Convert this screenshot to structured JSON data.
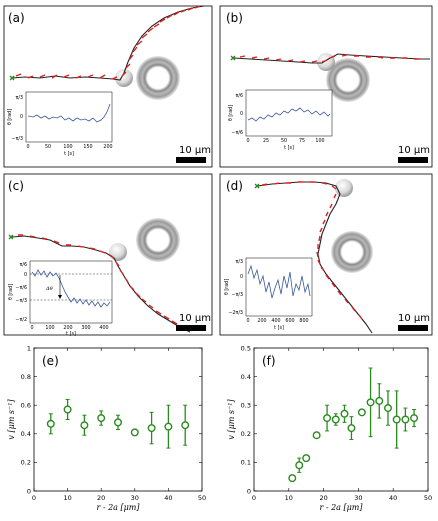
{
  "panels": [
    {
      "id": "a",
      "label": "(a)",
      "scale": "10 μm",
      "inset": {
        "xlabel": "t [s]",
        "ylabel": "θ [rad]",
        "xticks": [
          "0",
          "50",
          "100",
          "150",
          "200"
        ],
        "yticks": [
          "π/3",
          "0",
          "−π/3"
        ]
      }
    },
    {
      "id": "b",
      "label": "(b)",
      "scale": "10 μm",
      "inset": {
        "xlabel": "t [s]",
        "ylabel": "θ [rad]",
        "xticks": [
          "0",
          "25",
          "50",
          "75",
          "100"
        ],
        "yticks": [
          "π/6",
          "0",
          "−π/6"
        ]
      }
    },
    {
      "id": "c",
      "label": "(c)",
      "scale": "10 μm",
      "delta": "Δθ",
      "inset": {
        "xlabel": "t [s]",
        "ylabel": "θ [rad]",
        "xticks": [
          "0",
          "100",
          "200",
          "300",
          "400"
        ],
        "yticks": [
          "π/6",
          "0",
          "−π/6",
          "−π/3",
          "−π/2"
        ]
      }
    },
    {
      "id": "d",
      "label": "(d)",
      "scale": "10 μm",
      "inset": {
        "xlabel": "t [s]",
        "ylabel": "θ [rad]",
        "xticks": [
          "0",
          "200",
          "400",
          "600",
          "800"
        ],
        "yticks": [
          "π/3",
          "0",
          "−π/3",
          "−2π/3"
        ]
      }
    }
  ],
  "chart_data": [
    {
      "type": "scatter",
      "label": "(e)",
      "xlabel": "r - 2a [μm]",
      "ylabel": "v [μm s⁻¹]",
      "xlim": [
        0,
        50
      ],
      "ylim": [
        0,
        1
      ],
      "xticks": [
        0,
        10,
        20,
        30,
        40,
        50
      ],
      "yticks": [
        0,
        0.2,
        0.4,
        0.6,
        0.8,
        1
      ],
      "points": [
        {
          "x": 5,
          "y": 0.47,
          "err": 0.07
        },
        {
          "x": 10,
          "y": 0.57,
          "err": 0.07
        },
        {
          "x": 15,
          "y": 0.46,
          "err": 0.07
        },
        {
          "x": 20,
          "y": 0.51,
          "err": 0.05
        },
        {
          "x": 25,
          "y": 0.48,
          "err": 0.05
        },
        {
          "x": 30,
          "y": 0.41,
          "err": 0.02
        },
        {
          "x": 35,
          "y": 0.44,
          "err": 0.11
        },
        {
          "x": 40,
          "y": 0.45,
          "err": 0.15
        },
        {
          "x": 45,
          "y": 0.46,
          "err": 0.14
        }
      ],
      "color": "#2a8a1e"
    },
    {
      "type": "scatter",
      "label": "(f)",
      "xlabel": "r - 2a [μm]",
      "ylabel": "v [μm s⁻¹]",
      "xlim": [
        0,
        50
      ],
      "ylim": [
        0,
        0.5
      ],
      "xticks": [
        0,
        10,
        20,
        30,
        40,
        50
      ],
      "yticks": [
        0,
        0.1,
        0.2,
        0.3,
        0.4,
        0.5
      ],
      "points": [
        {
          "x": 11,
          "y": 0.045,
          "err": 0.005
        },
        {
          "x": 13,
          "y": 0.09,
          "err": 0.025
        },
        {
          "x": 15,
          "y": 0.115,
          "err": 0.01
        },
        {
          "x": 18,
          "y": 0.195,
          "err": 0.008
        },
        {
          "x": 21,
          "y": 0.255,
          "err": 0.045
        },
        {
          "x": 23.5,
          "y": 0.25,
          "err": 0.02
        },
        {
          "x": 26,
          "y": 0.27,
          "err": 0.03
        },
        {
          "x": 28,
          "y": 0.22,
          "err": 0.04
        },
        {
          "x": 31,
          "y": 0.275,
          "err": 0.01
        },
        {
          "x": 33.5,
          "y": 0.31,
          "err": 0.12
        },
        {
          "x": 36,
          "y": 0.315,
          "err": 0.06
        },
        {
          "x": 38.5,
          "y": 0.29,
          "err": 0.06
        },
        {
          "x": 41,
          "y": 0.25,
          "err": 0.1
        },
        {
          "x": 43.5,
          "y": 0.25,
          "err": 0.04
        },
        {
          "x": 46,
          "y": 0.255,
          "err": 0.03
        }
      ],
      "color": "#2a8a1e"
    }
  ]
}
